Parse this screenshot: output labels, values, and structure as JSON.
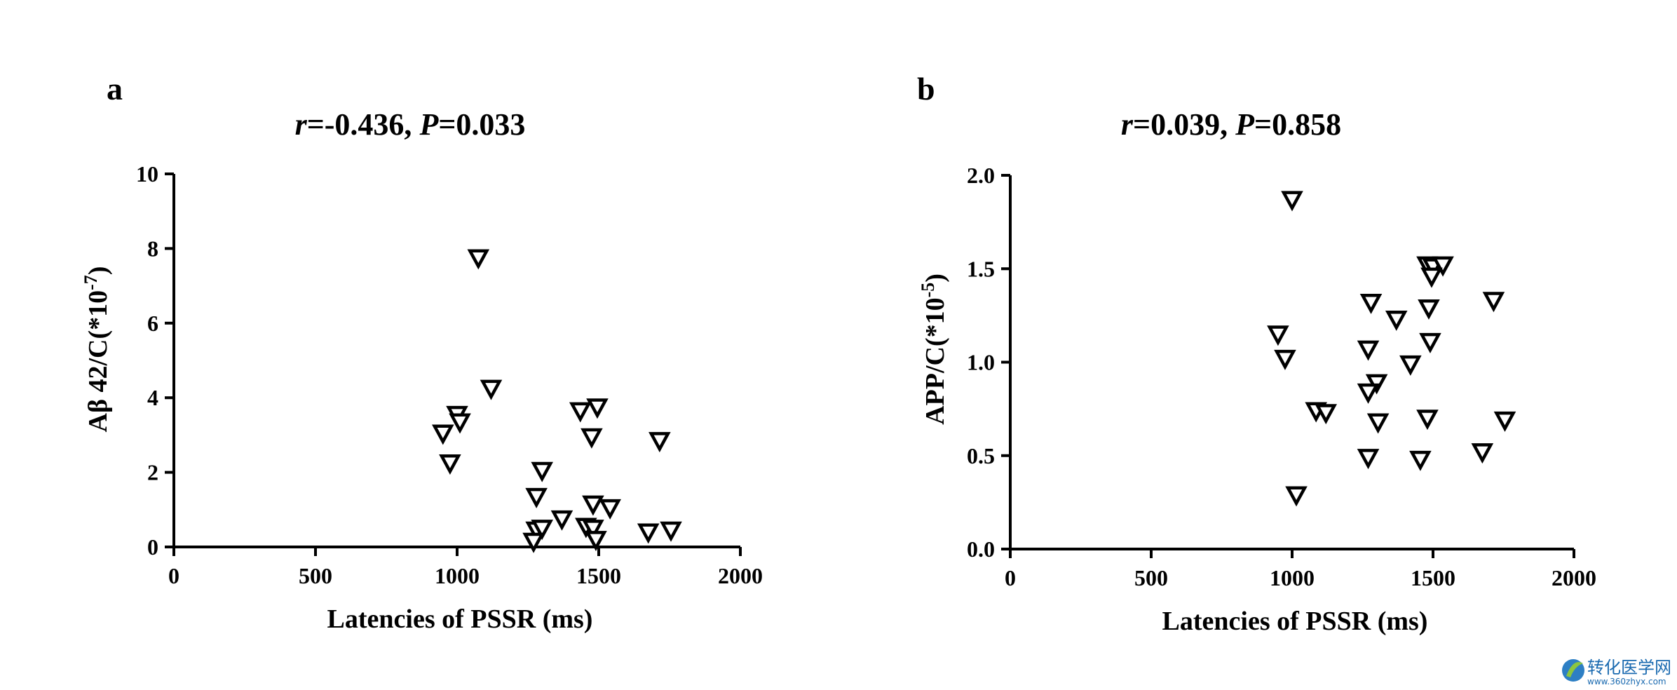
{
  "panels": [
    {
      "letter": "a",
      "stat": {
        "r_symbol": "r",
        "r_value": "=-0.436, ",
        "p_symbol": "P",
        "p_value": "=0.033"
      }
    },
    {
      "letter": "b",
      "stat": {
        "r_symbol": "r",
        "r_value": "=0.039, ",
        "p_symbol": "P",
        "p_value": "=0.858"
      }
    }
  ],
  "chart_data": [
    {
      "type": "scatter",
      "xlabel": "Latencies of PSSR (ms)",
      "ylabel": {
        "base": "Aβ 42/C(*10",
        "exp": "-7",
        "close": ")"
      },
      "xlim": [
        0,
        2000
      ],
      "ylim": [
        0,
        10
      ],
      "xticks": [
        "0",
        "500",
        "1000",
        "1500",
        "2000"
      ],
      "yticks": [
        "0",
        "2",
        "4",
        "6",
        "8",
        "10"
      ],
      "marker": "triangle-down",
      "points": [
        {
          "x": 1075,
          "y": 7.75
        },
        {
          "x": 1120,
          "y": 4.25
        },
        {
          "x": 1000,
          "y": 3.55
        },
        {
          "x": 1010,
          "y": 3.35
        },
        {
          "x": 950,
          "y": 3.05
        },
        {
          "x": 975,
          "y": 2.25
        },
        {
          "x": 1300,
          "y": 2.05
        },
        {
          "x": 1280,
          "y": 1.35
        },
        {
          "x": 1435,
          "y": 3.65
        },
        {
          "x": 1495,
          "y": 3.75
        },
        {
          "x": 1475,
          "y": 2.95
        },
        {
          "x": 1715,
          "y": 2.85
        },
        {
          "x": 1480,
          "y": 1.15
        },
        {
          "x": 1540,
          "y": 1.05
        },
        {
          "x": 1370,
          "y": 0.75
        },
        {
          "x": 1280,
          "y": 0.45
        },
        {
          "x": 1300,
          "y": 0.5
        },
        {
          "x": 1455,
          "y": 0.55
        },
        {
          "x": 1480,
          "y": 0.5
        },
        {
          "x": 1270,
          "y": 0.15
        },
        {
          "x": 1490,
          "y": 0.2
        },
        {
          "x": 1675,
          "y": 0.4
        },
        {
          "x": 1755,
          "y": 0.45
        }
      ]
    },
    {
      "type": "scatter",
      "xlabel": "Latencies of PSSR (ms)",
      "ylabel": {
        "base": "APP/C(*10",
        "exp": "-5",
        "close": ")"
      },
      "xlim": [
        0,
        2000
      ],
      "ylim": [
        0,
        2
      ],
      "xticks": [
        "0",
        "500",
        "1000",
        "1500",
        "2000"
      ],
      "yticks": [
        "0.0",
        "0.5",
        "1.0",
        "1.5",
        "2.0"
      ],
      "marker": "triangle-down",
      "points": [
        {
          "x": 1000,
          "y": 1.87
        },
        {
          "x": 950,
          "y": 1.15
        },
        {
          "x": 975,
          "y": 1.02
        },
        {
          "x": 1085,
          "y": 0.74
        },
        {
          "x": 1120,
          "y": 0.73
        },
        {
          "x": 1015,
          "y": 0.29
        },
        {
          "x": 1280,
          "y": 1.32
        },
        {
          "x": 1370,
          "y": 1.23
        },
        {
          "x": 1270,
          "y": 1.07
        },
        {
          "x": 1300,
          "y": 0.89
        },
        {
          "x": 1270,
          "y": 0.84
        },
        {
          "x": 1305,
          "y": 0.68
        },
        {
          "x": 1270,
          "y": 0.49
        },
        {
          "x": 1480,
          "y": 1.52
        },
        {
          "x": 1500,
          "y": 1.51
        },
        {
          "x": 1535,
          "y": 1.52
        },
        {
          "x": 1495,
          "y": 1.46
        },
        {
          "x": 1485,
          "y": 1.29
        },
        {
          "x": 1490,
          "y": 1.11
        },
        {
          "x": 1420,
          "y": 0.99
        },
        {
          "x": 1480,
          "y": 0.7
        },
        {
          "x": 1455,
          "y": 0.48
        },
        {
          "x": 1715,
          "y": 1.33
        },
        {
          "x": 1755,
          "y": 0.69
        },
        {
          "x": 1675,
          "y": 0.52
        }
      ]
    }
  ],
  "watermark": {
    "text": "转化医学网",
    "sub": "www.360zhyx.com"
  }
}
